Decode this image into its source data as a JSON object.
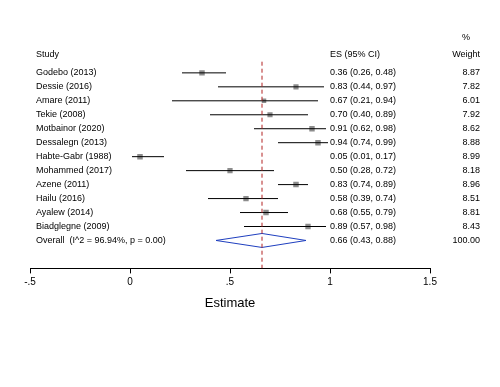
{
  "chart_data": {
    "type": "forest",
    "study_header": "Study",
    "estimate_header": "ES (95% CI)",
    "weight_header": [
      "%",
      "Weight"
    ],
    "categories": [
      "Godebo (2013)",
      "Dessie (2016)",
      "Amare (2011)",
      "Tekie (2008)",
      "Motbainor (2020)",
      "Dessalegn (2013)",
      "Habte-Gabr (1988)",
      "Mohammed (2017)",
      "Azene (2011)",
      "Hailu (2016)",
      "Ayalew (2014)",
      "Biadglegne (2009)"
    ],
    "values": [
      0.36,
      0.83,
      0.67,
      0.7,
      0.91,
      0.94,
      0.05,
      0.5,
      0.83,
      0.58,
      0.68,
      0.89
    ],
    "ci_lower": [
      0.26,
      0.44,
      0.21,
      0.4,
      0.62,
      0.74,
      0.01,
      0.28,
      0.74,
      0.39,
      0.55,
      0.57
    ],
    "ci_upper": [
      0.48,
      0.97,
      0.94,
      0.89,
      0.98,
      0.99,
      0.17,
      0.72,
      0.89,
      0.74,
      0.79,
      0.98
    ],
    "value_labels": [
      "0.36 (0.26, 0.48)",
      "0.83 (0.44, 0.97)",
      "0.67 (0.21, 0.94)",
      "0.70 (0.40, 0.89)",
      "0.91 (0.62, 0.98)",
      "0.94 (0.74, 0.99)",
      "0.05 (0.01, 0.17)",
      "0.50 (0.28, 0.72)",
      "0.83 (0.74, 0.89)",
      "0.58 (0.39, 0.74)",
      "0.68 (0.55, 0.79)",
      "0.89 (0.57, 0.98)"
    ],
    "weights": [
      8.87,
      7.82,
      6.01,
      7.92,
      8.62,
      8.88,
      8.99,
      8.18,
      8.96,
      8.51,
      8.81,
      8.43
    ],
    "weight_labels": [
      "8.87",
      "7.82",
      "6.01",
      "7.92",
      "8.62",
      "8.88",
      "8.99",
      "8.18",
      "8.96",
      "8.51",
      "8.81",
      "8.43"
    ],
    "overall": {
      "label": "Overall  (I^2 = 96.94%, p = 0.00)",
      "value": 0.66,
      "ci_lower": 0.43,
      "ci_upper": 0.88,
      "value_label": "0.66 (0.43, 0.88)",
      "weight": 100,
      "weight_label": "100.00",
      "color": "#1f3fbf"
    },
    "color": "#8c8c8c",
    "x_label": "Estimate",
    "xlim": [
      -0.5,
      1.5
    ],
    "xticks": [
      {
        "value": -0.5,
        "label": "-.5"
      },
      0,
      {
        "value": 0.5,
        "label": ".5"
      },
      1,
      1.5
    ],
    "grid": false
  }
}
